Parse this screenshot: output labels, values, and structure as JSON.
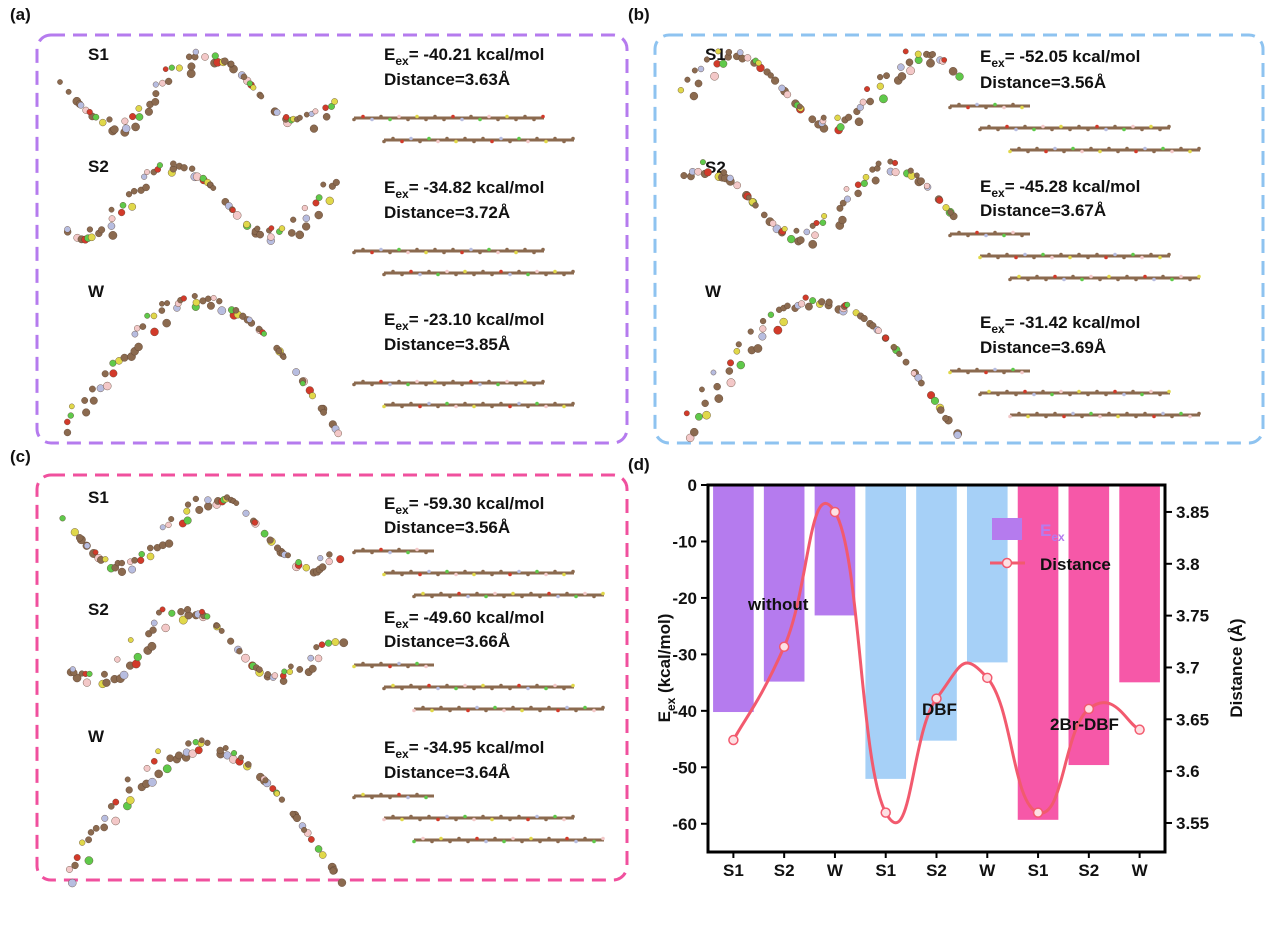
{
  "panels": [
    {
      "label": "(a)",
      "border_color": "#b57bee",
      "energy_symbol": "E",
      "energy_subscript": "ex",
      "rows": [
        {
          "name": "S1",
          "energy": "= -40.21 kcal/mol",
          "distance": "Distance=3.63Å"
        },
        {
          "name": "S2",
          "energy": "= -34.82 kcal/mol",
          "distance": "Distance=3.72Å"
        },
        {
          "name": "W",
          "energy": "= -23.10 kcal/mol",
          "distance": "Distance=3.85Å"
        }
      ]
    },
    {
      "label": "(b)",
      "border_color": "#8ec3f0",
      "energy_symbol": "E",
      "energy_subscript": "ex",
      "rows": [
        {
          "name": "S1",
          "energy": "= -52.05 kcal/mol",
          "distance": "Distance=3.56Å"
        },
        {
          "name": "S2",
          "energy": "= -45.28 kcal/mol",
          "distance": "Distance=3.67Å"
        },
        {
          "name": "W",
          "energy": "= -31.42 kcal/mol",
          "distance": "Distance=3.69Å"
        }
      ]
    },
    {
      "label": "(c)",
      "border_color": "#f0509e",
      "energy_symbol": "E",
      "energy_subscript": "ex",
      "rows": [
        {
          "name": "S1",
          "energy": "= -59.30 kcal/mol",
          "distance": "Distance=3.56Å"
        },
        {
          "name": "S2",
          "energy": "= -49.60 kcal/mol",
          "distance": "Distance=3.66Å"
        },
        {
          "name": "W",
          "energy": "= -34.95 kcal/mol",
          "distance": "Distance=3.64Å"
        }
      ]
    }
  ],
  "chart_panel_label": "(d)",
  "chart_data": {
    "type": "bar",
    "categories": [
      "S1",
      "S2",
      "W",
      "S1",
      "S2",
      "W",
      "S1",
      "S2",
      "W"
    ],
    "series": [
      {
        "name": "E",
        "name_subscript": "ex",
        "color": "#b57bee",
        "colors": [
          "#b57bee",
          "#b57bee",
          "#b57bee",
          "#a6d0f7",
          "#a6d0f7",
          "#a6d0f7",
          "#f658a8",
          "#f658a8",
          "#f658a8"
        ],
        "values": [
          -40.21,
          -34.82,
          -23.1,
          -52.05,
          -45.28,
          -31.42,
          -59.3,
          -49.6,
          -34.95
        ]
      },
      {
        "name": "Distance",
        "type": "line",
        "axis": "y2",
        "color": "#f25a6e",
        "values": [
          3.63,
          3.72,
          3.85,
          3.56,
          3.67,
          3.69,
          3.56,
          3.66,
          3.64
        ]
      }
    ],
    "ylabel": "E",
    "ylabel_subscript": "ex",
    "ylabel_rest": " (kcal/mol)",
    "y2label": "Distance (Å)",
    "ylim": [
      -65,
      0
    ],
    "yticks": [
      0,
      -10,
      -20,
      -30,
      -40,
      -50,
      -60
    ],
    "y2lim": [
      3.522,
      3.876
    ],
    "y2ticks": [
      3.55,
      3.6,
      3.65,
      3.7,
      3.75,
      3.8,
      3.85
    ],
    "annotations": [
      "without",
      "DBF",
      "2Br-DBF"
    ]
  }
}
